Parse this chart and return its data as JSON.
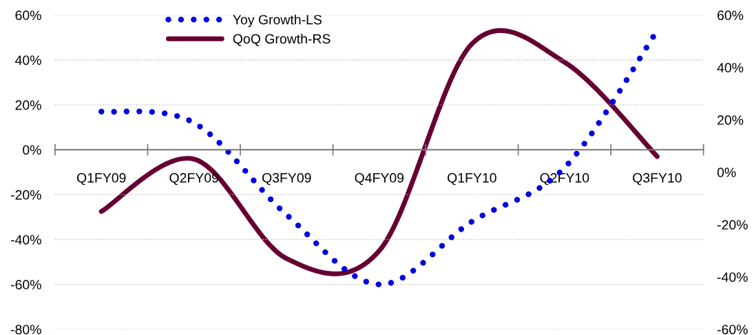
{
  "chart_data": {
    "type": "line",
    "categories": [
      "Q1FY09",
      "Q2FY09",
      "Q3FY09",
      "Q4FY09",
      "Q1FY10",
      "Q2FY10",
      "Q3FY10"
    ],
    "series": [
      {
        "name": "Yoy Growth-LS",
        "color": "#0000dd",
        "values": [
          17,
          12,
          -29,
          -60,
          -32,
          -8,
          53
        ],
        "line_style": "dotted"
      },
      {
        "name": "QoQ Growth-RS",
        "color": "#660033",
        "values": [
          -15,
          5,
          -33,
          -30,
          49,
          42,
          6
        ],
        "axis": "y2",
        "line_style": "solid"
      }
    ],
    "ylim": [
      -80,
      60
    ],
    "yticks": [
      {
        "value": -80,
        "label": "-80%"
      },
      {
        "value": -60,
        "label": "-60%"
      },
      {
        "value": -40,
        "label": "-40%"
      },
      {
        "value": -20,
        "label": "-20%"
      },
      {
        "value": 0,
        "label": "0%"
      },
      {
        "value": 20,
        "label": "20%"
      },
      {
        "value": 40,
        "label": "40%"
      },
      {
        "value": 60,
        "label": "60%"
      }
    ],
    "y2lim": [
      -60,
      60
    ],
    "y2ticks": [
      {
        "value": -60,
        "label": "-60%"
      },
      {
        "value": -40,
        "label": "-40%"
      },
      {
        "value": -20,
        "label": "-20%"
      },
      {
        "value": 0,
        "label": "0%"
      },
      {
        "value": 20,
        "label": "20%"
      },
      {
        "value": 40,
        "label": "40%"
      },
      {
        "value": 60,
        "label": "60%"
      }
    ],
    "grid": "y",
    "legend": "top",
    "marker": "none"
  }
}
